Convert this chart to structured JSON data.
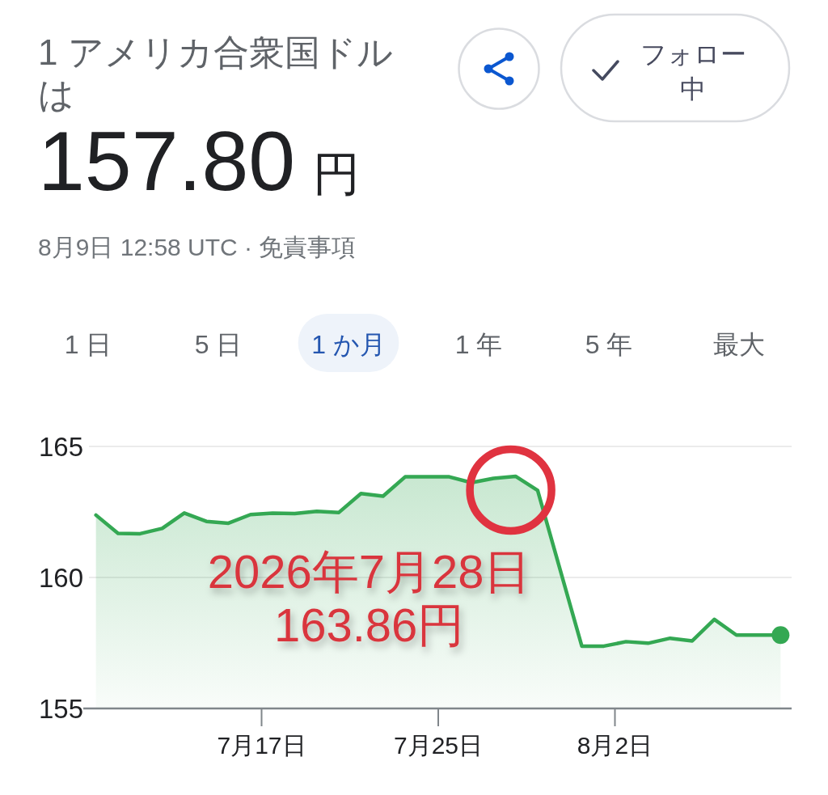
{
  "chart_data": {
    "type": "area",
    "title": "1 アメリカ合衆国ドルは",
    "subtitle": "157.80 円",
    "annotations": [
      "8月9日 12:58 UTC · 免責事項",
      "1 日",
      "5 日",
      "1 か月",
      "1 年",
      "5 年",
      "最大",
      "フォロー中",
      {
        "text": "2026年7月28日163.86円",
        "x": "2026-07-28T12:00",
        "y": 163.86
      }
    ],
    "x": [
      "2026-07-09T12:00",
      "2026-07-10T12:00",
      "2026-07-11T12:00",
      "2026-07-12T12:00",
      "2026-07-13T12:00",
      "2026-07-14T12:00",
      "2026-07-15T12:00",
      "2026-07-16T12:00",
      "2026-07-17T12:00",
      "2026-07-18T12:00",
      "2026-07-19T12:00",
      "2026-07-20T12:00",
      "2026-07-21T12:00",
      "2026-07-22T12:00",
      "2026-07-23T12:00",
      "2026-07-25T12:00",
      "2026-07-26T12:00",
      "2026-07-27T12:00",
      "2026-07-28T12:00",
      "2026-07-29T12:00",
      "2026-07-31T12:00",
      "2026-08-01T12:00",
      "2026-08-02T12:00",
      "2026-08-03T12:00",
      "2026-08-04T12:00",
      "2026-08-05T12:00",
      "2026-08-06T12:00",
      "2026-08-07T12:00",
      "2026-08-09T12:00"
    ],
    "series": [
      {
        "color": "#34a853",
        "values": [
          162.38,
          161.68,
          161.67,
          161.87,
          162.46,
          162.14,
          162.07,
          162.4,
          162.45,
          162.44,
          162.52,
          162.48,
          163.2,
          163.1,
          163.84,
          163.84,
          163.62,
          163.78,
          163.86,
          163.32,
          157.38,
          157.38,
          157.55,
          157.49,
          157.68,
          157.58,
          158.4,
          157.8,
          157.8
        ]
      },
      {
        "type": "scatter",
        "color": "#34a853",
        "marker": "circle",
        "x": [
          "2026-08-09T12:00"
        ],
        "values": [
          157.8
        ]
      }
    ],
    "xlim": [
      "2026-07-09",
      "2026-08-10"
    ],
    "xticks": [
      {
        "value": "2026-07-17",
        "label": "7月17日"
      },
      {
        "value": "2026-07-25",
        "label": "7月25日"
      },
      {
        "value": "2026-08-02",
        "label": "8月2日"
      }
    ],
    "ylim": [
      155,
      165
    ],
    "yticks": [
      155,
      160,
      165
    ],
    "grid": "y"
  }
}
